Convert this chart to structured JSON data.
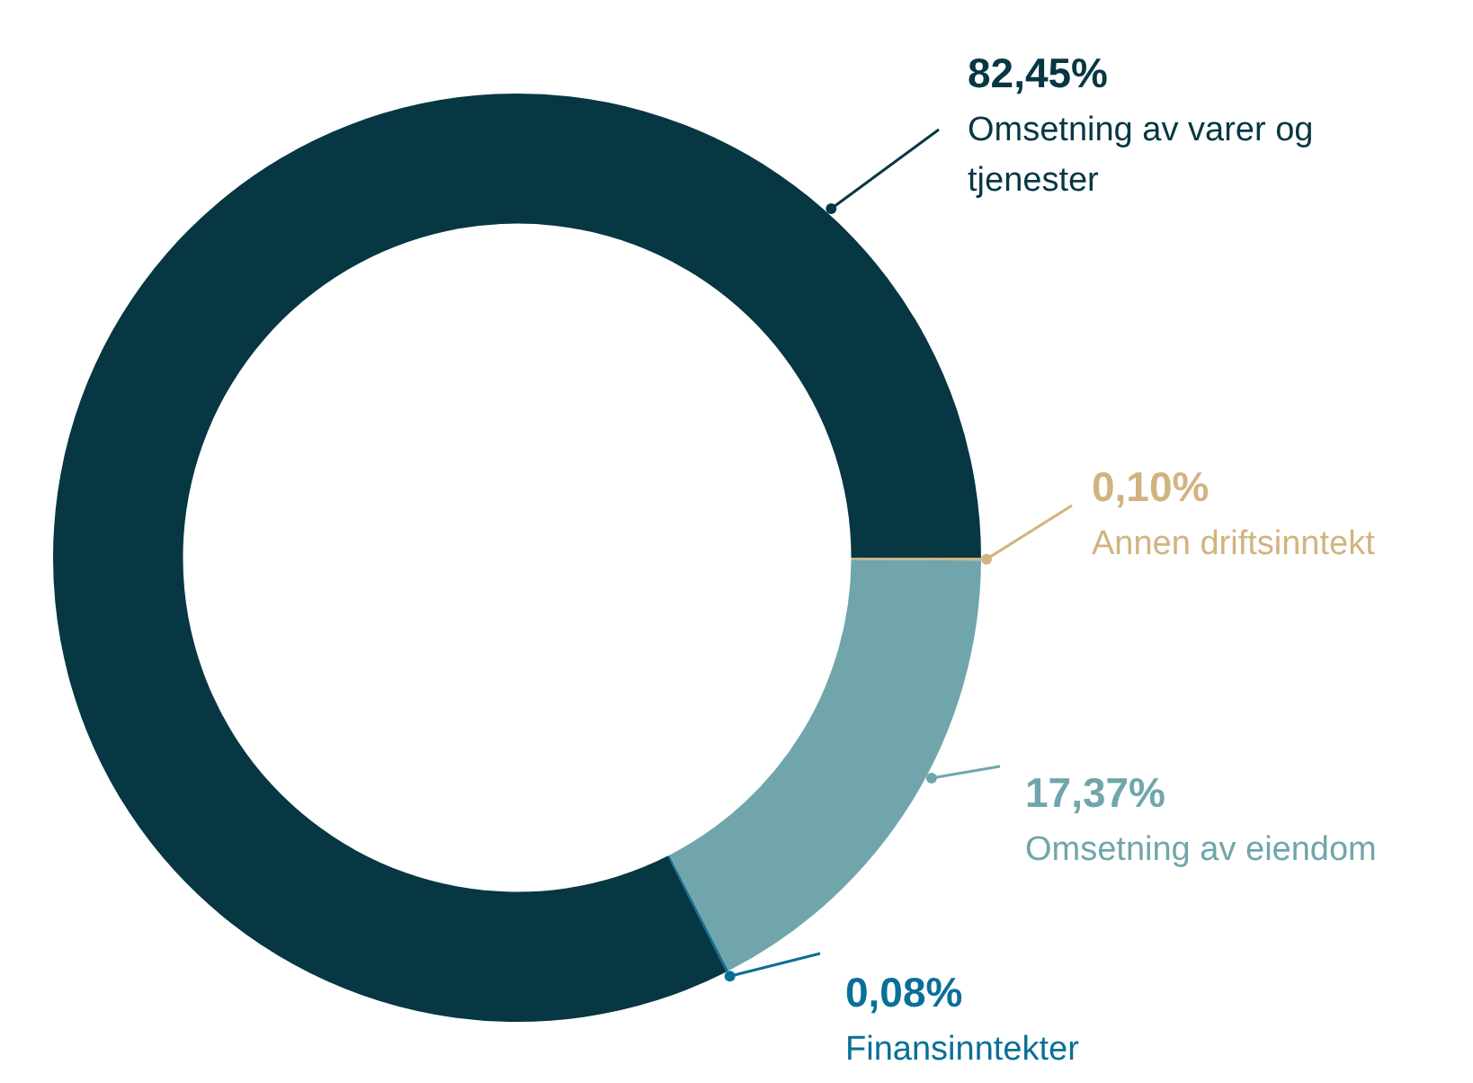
{
  "chart_data": {
    "type": "donut",
    "categories": [
      "Annen driftsinntekt",
      "Omsetning av eiendom",
      "Finansinntekter",
      "Omsetning av varer og tjenester"
    ],
    "values": [
      0.1,
      17.37,
      0.08,
      82.45
    ],
    "colors": [
      "#d2b380",
      "#70a6ab",
      "#0a6f98",
      "#063743"
    ],
    "value_labels": [
      "0,10%",
      "17,37%",
      "0,08%",
      "82,45%"
    ],
    "legend": false
  }
}
